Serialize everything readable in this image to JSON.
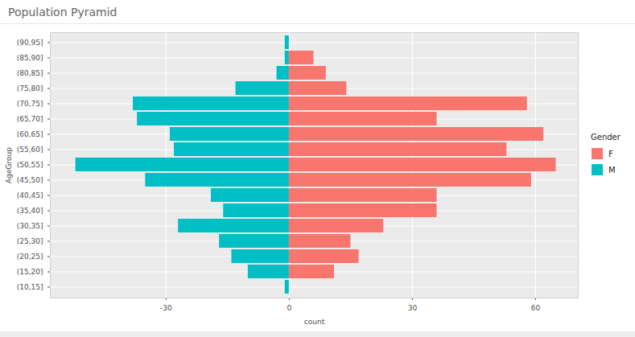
{
  "chart_data": {
    "type": "bar",
    "orientation": "horizontal",
    "title": "Population Pyramid",
    "x_label": "count",
    "y_label": "AgeGroup",
    "categories": [
      "(10,15]",
      "(15,20]",
      "(20,25]",
      "(25,30]",
      "(30,35]",
      "(35,40]",
      "(40,45]",
      "(45,50]",
      "(50,55]",
      "(55,60]",
      "(60,65]",
      "(65,70]",
      "(70,75]",
      "(75,80]",
      "(80,85]",
      "(85,90]",
      "(90,95]"
    ],
    "series": [
      {
        "name": "F",
        "color": "#F8766D",
        "values": [
          null,
          11,
          17,
          15,
          23,
          36,
          36,
          59,
          65,
          53,
          62,
          36,
          58,
          14,
          9,
          6,
          null
        ]
      },
      {
        "name": "M",
        "color": "#00BFC4",
        "values": [
          -1,
          -10,
          -14,
          -17,
          -27,
          -16,
          -19,
          -35,
          -52,
          -28,
          -29,
          -37,
          -38,
          -13,
          -3,
          -1,
          -1
        ]
      }
    ],
    "legend_title": "Gender",
    "legend": "right",
    "xlim": [
      -58.2,
      70.4
    ],
    "xticks": [
      -30,
      0,
      30,
      60
    ],
    "grid": true
  }
}
